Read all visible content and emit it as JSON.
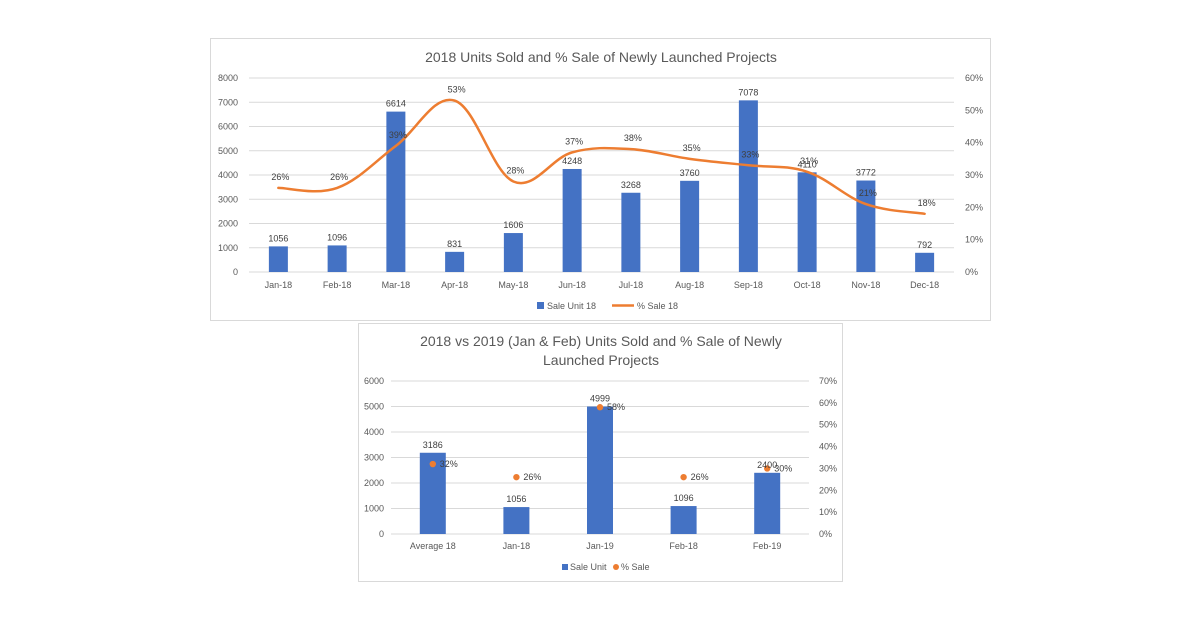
{
  "colors": {
    "bar": "#4472C4",
    "line": "#ED7D31",
    "grid": "#d9d9d9",
    "text": "#595959"
  },
  "chart_data": [
    {
      "type": "bar",
      "title": "2018  Units Sold and % Sale of Newly Launched Projects",
      "categories": [
        "Jan-18",
        "Feb-18",
        "Mar-18",
        "Apr-18",
        "May-18",
        "Jun-18",
        "Jul-18",
        "Aug-18",
        "Sep-18",
        "Oct-18",
        "Nov-18",
        "Dec-18"
      ],
      "series": [
        {
          "name": "Sale Unit 18",
          "type": "bar",
          "axis": "left",
          "values": [
            1056,
            1096,
            6614,
            831,
            1606,
            4248,
            3268,
            3760,
            7078,
            4110,
            3772,
            792
          ],
          "labels": [
            "1056",
            "1096",
            "6614",
            "831",
            "1606",
            "4248",
            "3268",
            "3760",
            "7078",
            "4110",
            "3772",
            "792"
          ]
        },
        {
          "name": "% Sale 18",
          "type": "line",
          "smooth": true,
          "axis": "right",
          "values": [
            26,
            26,
            39,
            53,
            28,
            37,
            38,
            35,
            33,
            31,
            21,
            18
          ],
          "labels": [
            "26%",
            "26%",
            "39%",
            "53%",
            "28%",
            "37%",
            "38%",
            "35%",
            "33%",
            "31%",
            "21%",
            "18%"
          ]
        }
      ],
      "yleft": {
        "lim": [
          0,
          8000
        ],
        "ticks": [
          "0",
          "1000",
          "2000",
          "3000",
          "4000",
          "5000",
          "6000",
          "7000",
          "8000"
        ]
      },
      "yright": {
        "lim": [
          0,
          60
        ],
        "ticks": [
          "0%",
          "10%",
          "20%",
          "30%",
          "40%",
          "50%",
          "60%"
        ]
      },
      "grid": true,
      "legend": "bottom"
    },
    {
      "type": "bar",
      "title_lines": [
        "2018 vs 2019 (Jan & Feb) Units Sold and % Sale of Newly",
        "Launched Projects"
      ],
      "categories": [
        "Average 18",
        "Jan-18",
        "Jan-19",
        "Feb-18",
        "Feb-19"
      ],
      "series": [
        {
          "name": "Sale Unit",
          "type": "bar",
          "axis": "left",
          "values": [
            3186,
            1056,
            4999,
            1096,
            2400
          ],
          "labels": [
            "3186",
            "1056",
            "4999",
            "1096",
            "2400"
          ]
        },
        {
          "name": "% Sale",
          "type": "scatter",
          "axis": "right",
          "values": [
            32,
            26,
            58,
            26,
            30
          ],
          "labels": [
            "32%",
            "26%",
            "58%",
            "26%",
            "30%"
          ]
        }
      ],
      "yleft": {
        "lim": [
          0,
          6000
        ],
        "ticks": [
          "0",
          "1000",
          "2000",
          "3000",
          "4000",
          "5000",
          "6000"
        ]
      },
      "yright": {
        "lim": [
          0,
          70
        ],
        "ticks": [
          "0%",
          "10%",
          "20%",
          "30%",
          "40%",
          "50%",
          "60%",
          "70%"
        ]
      },
      "grid": true,
      "legend": "bottom"
    }
  ]
}
